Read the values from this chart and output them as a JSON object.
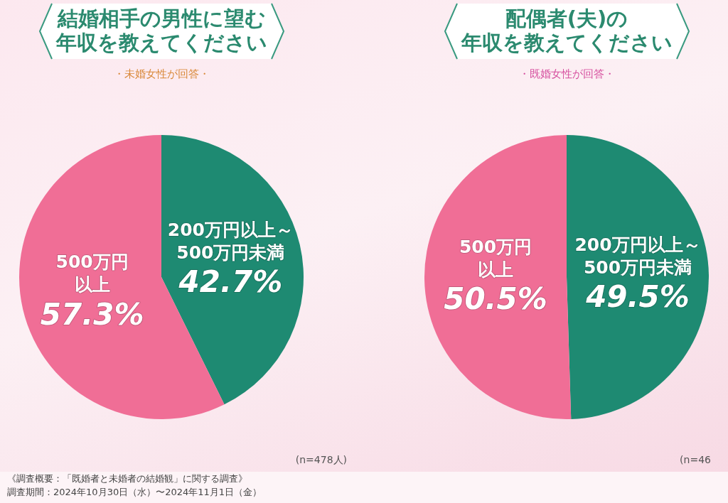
{
  "chart_data": [
    {
      "type": "pie",
      "title": "結婚相手の男性に望む年収を教えてください",
      "subtitle": "・未婚女性が回答・",
      "categories": [
        "200万円以上～500万円未満",
        "500万円以上"
      ],
      "values": [
        42.7,
        57.3
      ],
      "colors": [
        "#1e8a72",
        "#f06e96"
      ],
      "value_labels": [
        "42.7%",
        "57.3%"
      ],
      "annotations": [
        "(n=478人)",
        "《調査概要：「既婚者と未婚者の結婚観」に関する調査》",
        "調査期間：2024年10月30日（水）〜2024年11月1日（金）"
      ]
    },
    {
      "type": "pie",
      "title": "配偶者(夫)の年収を教えてください",
      "subtitle": "・既婚女性が回答・",
      "categories": [
        "200万円以上～500万円未満",
        "500万円以上"
      ],
      "values": [
        49.5,
        50.5
      ],
      "colors": [
        "#1e8a72",
        "#f06e96"
      ],
      "value_labels": [
        "49.5%",
        "50.5%"
      ],
      "annotations": [
        "(n=46"
      ]
    }
  ]
}
